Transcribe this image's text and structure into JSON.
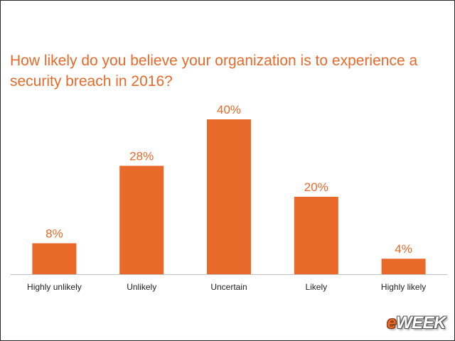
{
  "chart_data": {
    "type": "bar",
    "title": "How likely do you believe your organization is to experience a security breach in 2016?",
    "categories": [
      "Highly unlikely",
      "Unlikely",
      "Uncertain",
      "Likely",
      "Highly likely"
    ],
    "values": [
      8,
      28,
      40,
      20,
      4
    ],
    "value_labels": [
      "8%",
      "28%",
      "40%",
      "20%",
      "4%"
    ],
    "ylim": [
      0,
      40
    ],
    "grid": false,
    "legend": "none",
    "bar_color": "#e8692a",
    "axis_color": "#bfbfbf"
  },
  "watermark": {
    "prefix": "e",
    "suffix": "WEEK"
  }
}
